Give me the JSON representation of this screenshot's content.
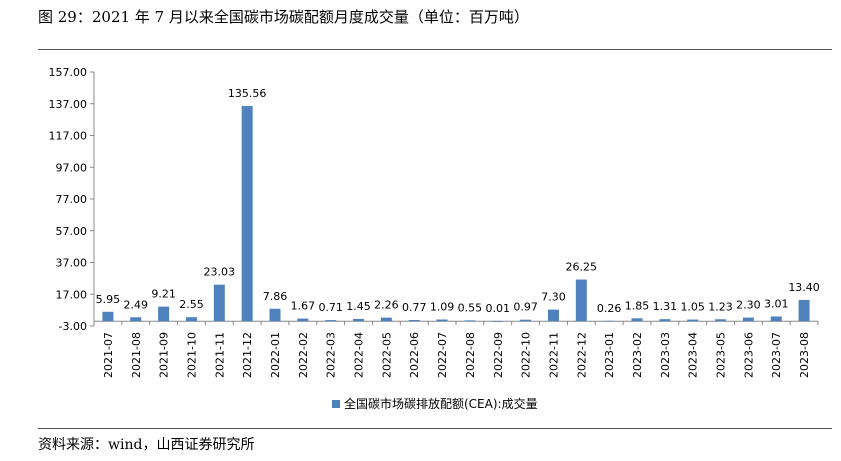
{
  "figure": {
    "title": "图 29：2021 年 7 月以来全国碳市场碳配额月度成交量（单位：百万吨）",
    "source": "资料来源：wind，山西证券研究所"
  },
  "chart_data": {
    "type": "bar",
    "categories": [
      "2021-07",
      "2021-08",
      "2021-09",
      "2021-10",
      "2021-11",
      "2021-12",
      "2022-01",
      "2022-02",
      "2022-03",
      "2022-04",
      "2022-05",
      "2022-06",
      "2022-07",
      "2022-08",
      "2022-09",
      "2022-10",
      "2022-11",
      "2022-12",
      "2023-01",
      "2023-02",
      "2023-03",
      "2023-04",
      "2023-05",
      "2023-06",
      "2023-07",
      "2023-08"
    ],
    "series": [
      {
        "name": "全国碳市场碳排放配额(CEA):成交量",
        "values": [
          5.95,
          2.49,
          9.21,
          2.55,
          23.03,
          135.56,
          7.86,
          1.67,
          0.71,
          1.45,
          2.26,
          0.77,
          1.09,
          0.55,
          0.01,
          0.97,
          7.3,
          26.25,
          0.26,
          1.85,
          1.31,
          1.05,
          1.23,
          2.3,
          3.01,
          13.4
        ],
        "labels": [
          "5.95",
          "2.49",
          "9.21",
          "2.55",
          "23.03",
          "135.56",
          "7.86",
          "1.67",
          "0.71",
          "1.45",
          "2.26",
          "0.77",
          "1.09",
          "0.55",
          "0.01",
          "0.97",
          "7.30",
          "26.25",
          "0.26",
          "1.85",
          "1.31",
          "1.05",
          "1.23",
          "2.30",
          "3.01",
          "13.40"
        ],
        "color": "#4f81bd"
      }
    ],
    "y_ticks": [
      "157.00",
      "137.00",
      "117.00",
      "97.00",
      "77.00",
      "57.00",
      "37.00",
      "17.00",
      "-3.00"
    ],
    "ylim": [
      -3,
      157
    ],
    "grid": false,
    "legend_position": "bottom"
  }
}
